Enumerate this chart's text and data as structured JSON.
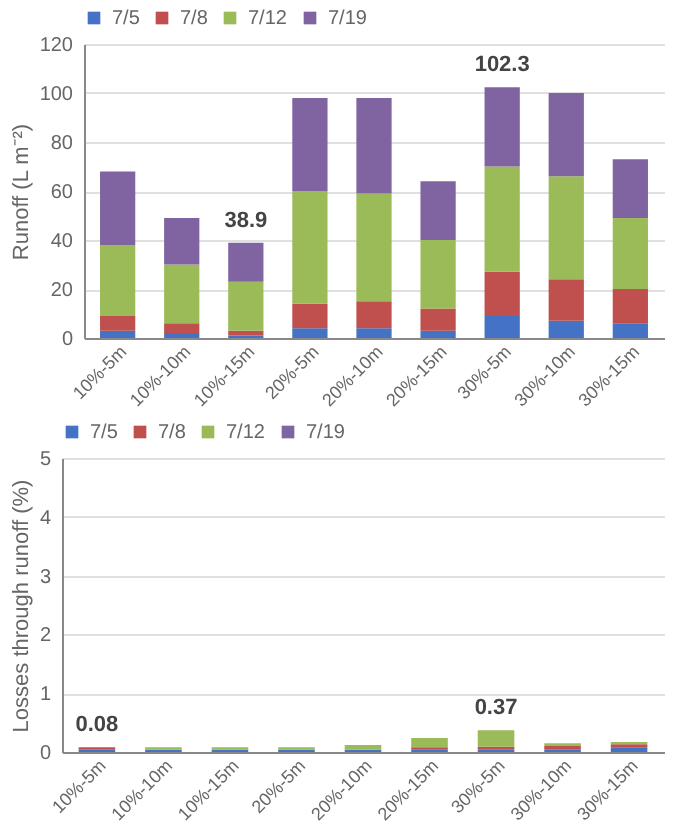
{
  "chart_data": [
    {
      "type": "bar",
      "ylabel": "Runoff (L m⁻²)",
      "stacked": true,
      "grid": "y",
      "legend": "top",
      "categories": [
        "10%-5m",
        "10%-10m",
        "10%-15m",
        "20%-5m",
        "20%-10m",
        "20%-15m",
        "30%-5m",
        "30%-10m",
        "30%-15m"
      ],
      "series": [
        {
          "name": "7/5",
          "color": "#4472c4",
          "values": [
            3,
            2,
            1,
            4,
            4,
            3,
            9,
            7,
            6
          ]
        },
        {
          "name": "7/8",
          "color": "#c0504d",
          "values": [
            6,
            4,
            2,
            10,
            11,
            9,
            18,
            17,
            14
          ]
        },
        {
          "name": "7/12",
          "color": "#9bbb59",
          "values": [
            29,
            24,
            20,
            46,
            44,
            28,
            43,
            42,
            29
          ]
        },
        {
          "name": "7/19",
          "color": "#8064a2",
          "values": [
            30,
            19,
            15.9,
            38,
            39,
            24,
            32.3,
            34,
            24
          ]
        }
      ],
      "totals": [
        null,
        null,
        "38.9",
        null,
        null,
        null,
        "102.3",
        null,
        null
      ],
      "ylim": [
        0,
        120
      ],
      "yticks": [
        0,
        20,
        40,
        60,
        80,
        100,
        120
      ]
    },
    {
      "type": "bar",
      "ylabel": "Losses through runoff (%)",
      "stacked": true,
      "grid": "y",
      "legend": "top",
      "categories": [
        "10%-5m",
        "10%-10m",
        "10%-15m",
        "20%-5m",
        "20%-10m",
        "20%-15m",
        "30%-5m",
        "30%-10m",
        "30%-15m"
      ],
      "series": [
        {
          "name": "7/5",
          "color": "#4472c4",
          "values": [
            0.04,
            0.04,
            0.04,
            0.04,
            0.04,
            0.04,
            0.04,
            0.04,
            0.08
          ]
        },
        {
          "name": "7/8",
          "color": "#c0504d",
          "values": [
            0.04,
            0,
            0,
            0,
            0,
            0.04,
            0.05,
            0.06,
            0.05
          ]
        },
        {
          "name": "7/12",
          "color": "#9bbb59",
          "values": [
            0,
            0.04,
            0.04,
            0.04,
            0.08,
            0.16,
            0.28,
            0.05,
            0.04
          ]
        },
        {
          "name": "7/19",
          "color": "#8064a2",
          "values": [
            0,
            0,
            0,
            0,
            0,
            0,
            0,
            0,
            0
          ]
        }
      ],
      "totals": [
        "0.08",
        null,
        null,
        null,
        null,
        null,
        "0.37",
        null,
        null
      ],
      "ylim": [
        0,
        5
      ],
      "yticks": [
        0,
        1,
        2,
        3,
        4,
        5
      ]
    }
  ]
}
